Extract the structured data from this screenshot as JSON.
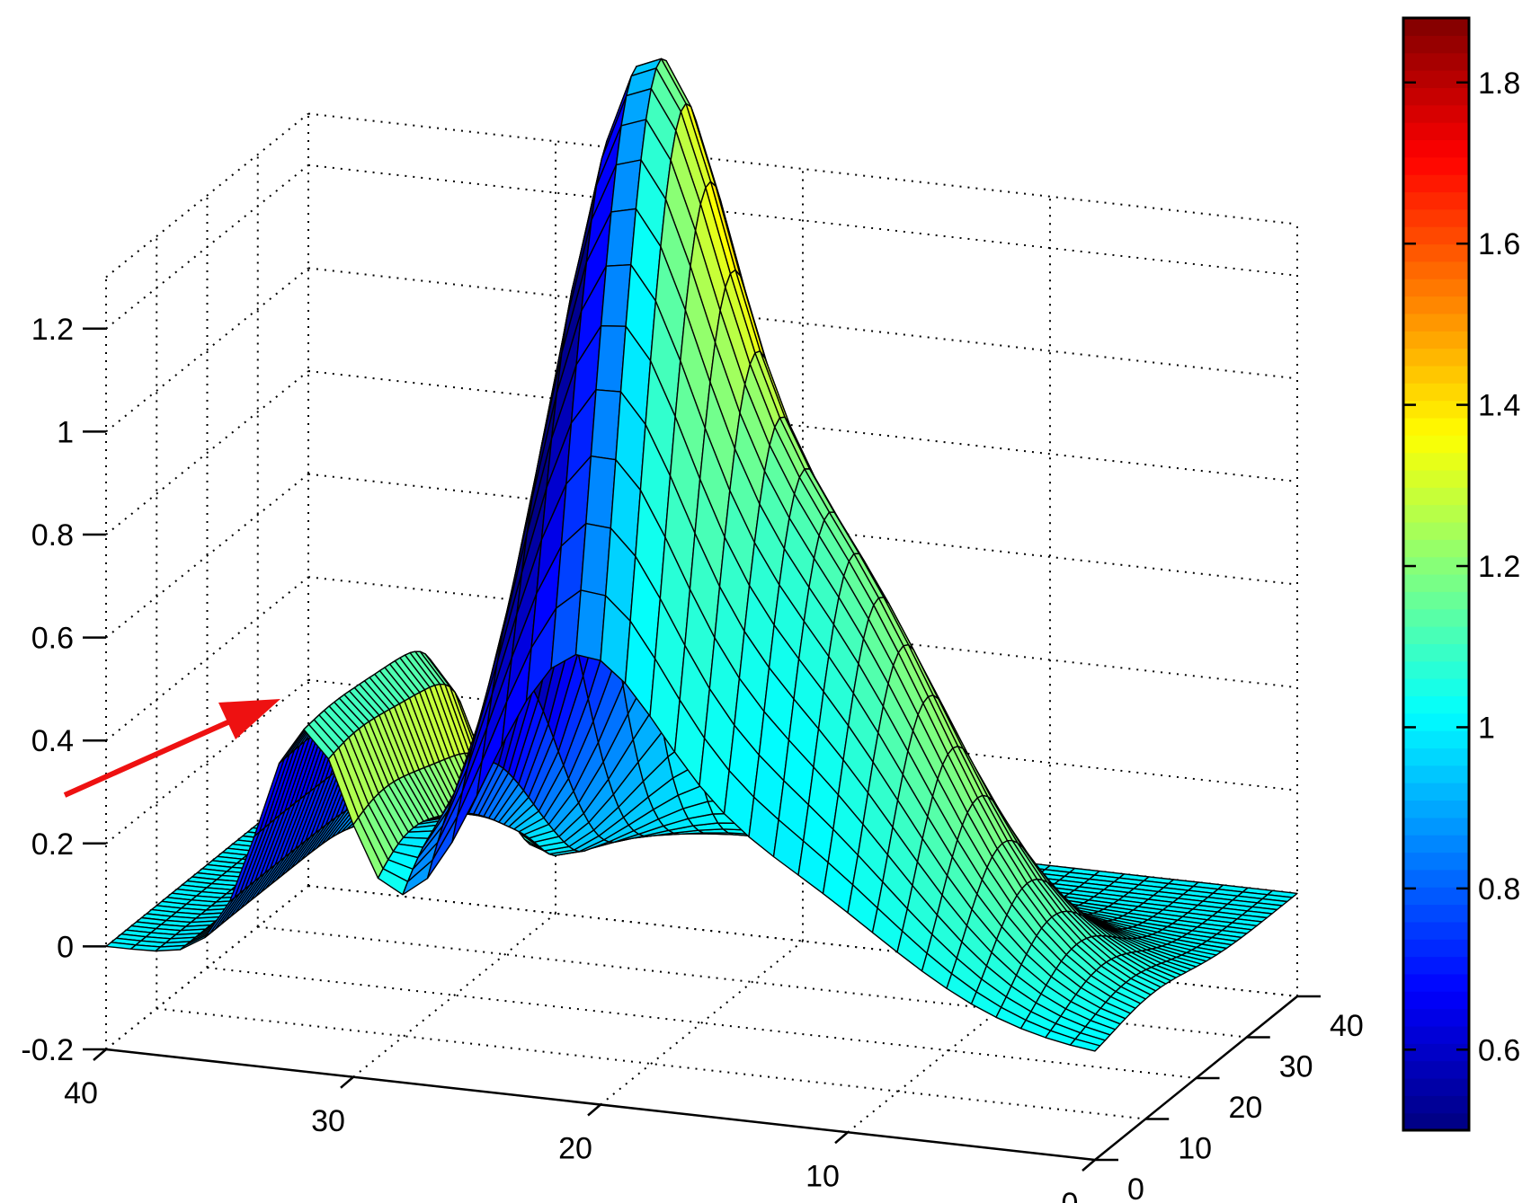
{
  "chart_data": {
    "type": "surface",
    "title": "",
    "xlabel": "",
    "ylabel": "",
    "zlabel": "",
    "x_ticks": [
      "40",
      "30",
      "20",
      "10",
      "0"
    ],
    "y_ticks": [
      "0",
      "10",
      "20",
      "30",
      "40"
    ],
    "z_ticks": [
      "-0.2",
      "0",
      "0.2",
      "0.4",
      "0.6",
      "0.8",
      "1",
      "1.2"
    ],
    "xlim": [
      0,
      40
    ],
    "ylim": [
      0,
      40
    ],
    "zlim": [
      -0.2,
      1.3
    ],
    "grid": true,
    "grid_size": 41,
    "surface_features": {
      "baseline": 0,
      "main_peak": {
        "x": 21,
        "y": 14,
        "z": 1.24
      },
      "secondary_peak": {
        "x": 14,
        "y": 11,
        "z": 1.0
      },
      "ridge": {
        "x": 32,
        "z": 0.45
      },
      "dip": {
        "x": 30,
        "y": 30,
        "z": -0.05
      }
    },
    "colorbar": {
      "range": [
        0.5,
        1.88
      ],
      "ticks": [
        "0.6",
        "0.8",
        "1",
        "1.2",
        "1.4",
        "1.6",
        "1.8"
      ],
      "colormap": "jet"
    },
    "annotation": {
      "type": "arrow",
      "color": "#ee1111"
    }
  }
}
